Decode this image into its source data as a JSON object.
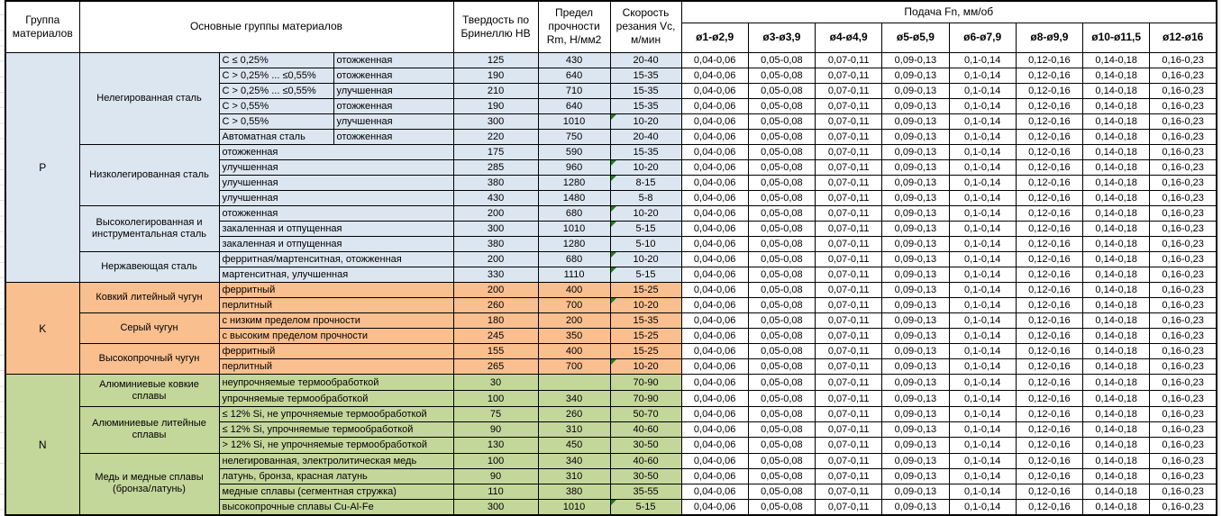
{
  "header": {
    "col_group": "Группа материалов",
    "col_main_groups": "Основные группы материалов",
    "col_hardness": "Твердость по Бринеллю HB",
    "col_strength": "Предел прочности Rm, Н/мм2",
    "col_speed": "Скорость резания Vc, м/мин",
    "feed_title": "Подача Fn, мм/об",
    "feed_cols": [
      "ø1-ø2,9",
      "ø3-ø3,9",
      "ø4-ø4,9",
      "ø5-ø5,9",
      "ø6-ø7,9",
      "ø8-ø9,9",
      "ø10-ø11,5",
      "ø12-ø16"
    ]
  },
  "feed_values": [
    "0,04-0,06",
    "0,05-0,08",
    "0,07-0,11",
    "0,09-0,13",
    "0,1-0,14",
    "0,12-0,16",
    "0,14-0,18",
    "0,16-0,23"
  ],
  "colors": {
    "steel": "#dce6f1",
    "cast_iron": "#fabf8f",
    "non_ferrous": "#c4d79b",
    "flag": "#1e7e1e"
  },
  "sections": [
    {
      "letter": "P",
      "color": "#dce6f1",
      "groups": [
        {
          "name": "Нелегированная сталь",
          "rows": [
            {
              "d": "C ≤ 0,25%",
              "s": "отожженная",
              "hb": "125",
              "rm": "430",
              "vc": "20-40",
              "flag": false
            },
            {
              "d": "C > 0,25% ... ≤0,55%",
              "s": "отожженная",
              "hb": "190",
              "rm": "640",
              "vc": "15-35",
              "flag": false
            },
            {
              "d": "C > 0,25% ... ≤0,55%",
              "s": "улучшенная",
              "hb": "210",
              "rm": "710",
              "vc": "15-35",
              "flag": false
            },
            {
              "d": "C > 0,55%",
              "s": "отожженная",
              "hb": "190",
              "rm": "640",
              "vc": "15-35",
              "flag": false
            },
            {
              "d": "C > 0,55%",
              "s": "улучшенная",
              "hb": "300",
              "rm": "1010",
              "vc": "10-20",
              "flag": true
            },
            {
              "d": "Автоматная сталь",
              "s": "отожженная",
              "hb": "220",
              "rm": "750",
              "vc": "20-40",
              "flag": false
            }
          ]
        },
        {
          "name": "Низколегированная сталь",
          "rows": [
            {
              "d": "отожженная",
              "s": null,
              "hb": "175",
              "rm": "590",
              "vc": "15-35",
              "flag": false
            },
            {
              "d": "улучшенная",
              "s": null,
              "hb": "285",
              "rm": "960",
              "vc": "10-20",
              "flag": true
            },
            {
              "d": "улучшенная",
              "s": null,
              "hb": "380",
              "rm": "1280",
              "vc": "8-15",
              "flag": true
            },
            {
              "d": "улучшенная",
              "s": null,
              "hb": "430",
              "rm": "1480",
              "vc": "5-8",
              "flag": false
            }
          ]
        },
        {
          "name": "Высоколегированная и инструментальная сталь",
          "rows": [
            {
              "d": "отожженная",
              "s": null,
              "hb": "200",
              "rm": "680",
              "vc": "10-20",
              "flag": true
            },
            {
              "d": "закаленная и отпущенная",
              "s": null,
              "hb": "300",
              "rm": "1010",
              "vc": "5-15",
              "flag": true
            },
            {
              "d": "закаленная и отпущенная",
              "s": null,
              "hb": "380",
              "rm": "1280",
              "vc": "5-10",
              "flag": false
            }
          ]
        },
        {
          "name": "Нержавеющая сталь",
          "rows": [
            {
              "d": "ферритная/мартенситная, отожженная",
              "s": null,
              "hb": "200",
              "rm": "680",
              "vc": "10-20",
              "flag": true
            },
            {
              "d": "мартенситная, улучшенная",
              "s": null,
              "hb": "330",
              "rm": "1110",
              "vc": "5-15",
              "flag": true
            }
          ]
        }
      ]
    },
    {
      "letter": "K",
      "color": "#fabf8f",
      "groups": [
        {
          "name": "Ковкий литейный чугун",
          "rows": [
            {
              "d": "ферритный",
              "s": null,
              "hb": "200",
              "rm": "400",
              "vc": "15-25",
              "flag": false
            },
            {
              "d": "перлитный",
              "s": null,
              "hb": "260",
              "rm": "700",
              "vc": "10-20",
              "flag": true
            }
          ]
        },
        {
          "name": "Серый чугун",
          "rows": [
            {
              "d": "с низким пределом прочности",
              "s": null,
              "hb": "180",
              "rm": "200",
              "vc": "15-35",
              "flag": false
            },
            {
              "d": "с высоким пределом прочности",
              "s": null,
              "hb": "245",
              "rm": "350",
              "vc": "15-25",
              "flag": false
            }
          ]
        },
        {
          "name": "Высокопрочный чугун",
          "rows": [
            {
              "d": "ферритный",
              "s": null,
              "hb": "155",
              "rm": "400",
              "vc": "15-25",
              "flag": false
            },
            {
              "d": "перлитный",
              "s": null,
              "hb": "265",
              "rm": "700",
              "vc": "10-20",
              "flag": true
            }
          ]
        }
      ]
    },
    {
      "letter": "N",
      "color": "#c4d79b",
      "groups": [
        {
          "name": "Алюминиевые ковкие сплавы",
          "rows": [
            {
              "d": "неупрочняемые термообработкой",
              "s": null,
              "hb": "30",
              "rm": "",
              "vc": "70-90",
              "flag": false
            },
            {
              "d": "упрочняемые термообработкой",
              "s": null,
              "hb": "100",
              "rm": "340",
              "vc": "70-90",
              "flag": false
            }
          ]
        },
        {
          "name": "Алюминиевые литейные сплавы",
          "rows": [
            {
              "d": "≤ 12% Si, не упрочняемые термообработкой",
              "s": null,
              "hb": "75",
              "rm": "260",
              "vc": "50-70",
              "flag": false
            },
            {
              "d": "≤ 12% Si, упрочняемые термообработкой",
              "s": null,
              "hb": "90",
              "rm": "310",
              "vc": "40-60",
              "flag": false
            },
            {
              "d": "> 12% Si, не упрочняемые термообработкой",
              "s": null,
              "hb": "130",
              "rm": "450",
              "vc": "30-50",
              "flag": false
            }
          ]
        },
        {
          "name": "Медь и медные сплавы (бронза/латунь)",
          "rows": [
            {
              "d": "нелегированная, электролитическая медь",
              "s": null,
              "hb": "100",
              "rm": "340",
              "vc": "40-60",
              "flag": false
            },
            {
              "d": "латунь, бронза, красная латунь",
              "s": null,
              "hb": "90",
              "rm": "310",
              "vc": "30-50",
              "flag": false
            },
            {
              "d": "медные сплавы (сегментная стружка)",
              "s": null,
              "hb": "110",
              "rm": "380",
              "vc": "35-55",
              "flag": false
            },
            {
              "d": "высокопрочные сплавы Cu-Al-Fe",
              "s": null,
              "hb": "300",
              "rm": "1010",
              "vc": "5-15",
              "flag": true
            }
          ]
        }
      ]
    }
  ]
}
